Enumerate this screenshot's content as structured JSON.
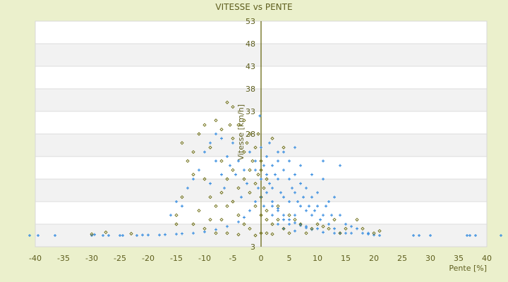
{
  "chart_data": {
    "type": "scatter",
    "title": "VITESSE vs PENTE",
    "xlabel": "Pente [%]",
    "ylabel": "Vitesse [km/h]",
    "xlim": [
      -40,
      40
    ],
    "ylim": [
      3,
      53
    ],
    "xticks": [
      -40,
      -35,
      -30,
      -25,
      -20,
      -15,
      -10,
      -5,
      0,
      5,
      10,
      15,
      20,
      25,
      30,
      35,
      40
    ],
    "yticks": [
      53,
      48,
      43,
      38,
      33,
      28,
      23,
      18,
      13,
      8,
      3
    ],
    "ytick_labels_shown": [
      "53",
      "48",
      "43",
      "38",
      "33",
      "28",
      "3"
    ],
    "grid": true,
    "legend": "none",
    "colors": {
      "background": "#ebf0cc",
      "plot": "#ffffff",
      "band": "#f2f2f2",
      "axis": "#5c5c00",
      "series_blue": "#3a8ee0",
      "series_olive": "#6b6b10",
      "text": "#5e5e1e"
    },
    "series": [
      {
        "marker": "plus",
        "color": "#3a8ee0",
        "points": [
          [
            -41,
            5.5
          ],
          [
            -39.5,
            5.5
          ],
          [
            -36.5,
            5.5
          ],
          [
            -30,
            5.5
          ],
          [
            -29.5,
            5.7
          ],
          [
            -28,
            5.5
          ],
          [
            -27,
            5.5
          ],
          [
            -25,
            5.5
          ],
          [
            -24.5,
            5.5
          ],
          [
            -22,
            5.5
          ],
          [
            -21,
            5.6
          ],
          [
            -20,
            5.6
          ],
          [
            -18,
            5.6
          ],
          [
            -17,
            5.7
          ],
          [
            -15,
            5.8
          ],
          [
            -14,
            5.9
          ],
          [
            -12,
            6
          ],
          [
            -10,
            6.3
          ],
          [
            -8,
            6.8
          ],
          [
            -6,
            7.5
          ],
          [
            -4,
            8.5
          ],
          [
            -3,
            9.5
          ],
          [
            -2,
            11
          ],
          [
            -1,
            13
          ],
          [
            -10,
            24
          ],
          [
            -9,
            26
          ],
          [
            -8,
            28
          ],
          [
            -7,
            27
          ],
          [
            -11,
            20
          ],
          [
            -12,
            18
          ],
          [
            -13,
            16
          ],
          [
            -14,
            12
          ],
          [
            -9,
            17
          ],
          [
            -8,
            22
          ],
          [
            -7,
            19
          ],
          [
            -6,
            23
          ],
          [
            -5,
            26
          ],
          [
            -4,
            22
          ],
          [
            -3,
            20
          ],
          [
            -2,
            24
          ],
          [
            -1,
            22
          ],
          [
            0,
            25
          ],
          [
            0,
            18
          ],
          [
            0,
            14
          ],
          [
            1,
            23
          ],
          [
            1,
            19
          ],
          [
            2,
            21
          ],
          [
            2,
            16
          ],
          [
            2,
            12
          ],
          [
            3,
            22
          ],
          [
            3,
            18
          ],
          [
            3,
            11
          ],
          [
            4,
            20
          ],
          [
            4,
            14
          ],
          [
            4,
            9
          ],
          [
            5,
            18
          ],
          [
            5,
            13
          ],
          [
            5,
            8
          ],
          [
            6,
            19
          ],
          [
            6,
            15
          ],
          [
            6,
            10
          ],
          [
            7,
            17
          ],
          [
            7,
            12
          ],
          [
            7,
            8
          ],
          [
            8,
            16
          ],
          [
            8,
            11
          ],
          [
            8,
            7.5
          ],
          [
            9,
            14
          ],
          [
            9,
            10
          ],
          [
            10,
            15
          ],
          [
            10,
            12
          ],
          [
            10,
            7
          ],
          [
            11,
            18
          ],
          [
            11,
            10
          ],
          [
            12,
            13
          ],
          [
            12,
            8
          ],
          [
            13,
            14
          ],
          [
            13,
            7
          ],
          [
            14,
            10
          ],
          [
            14,
            6
          ],
          [
            15,
            8
          ],
          [
            15,
            6
          ],
          [
            16,
            6
          ],
          [
            17,
            7
          ],
          [
            18,
            6
          ],
          [
            19,
            6
          ],
          [
            20,
            5.6
          ],
          [
            21,
            5.5
          ],
          [
            27,
            5.5
          ],
          [
            28,
            5.5
          ],
          [
            30,
            5.5
          ],
          [
            36.5,
            5.5
          ],
          [
            37,
            5.5
          ],
          [
            38,
            5.5
          ],
          [
            42.5,
            5.5
          ],
          [
            1,
            15
          ],
          [
            2,
            13
          ],
          [
            3,
            11.5
          ],
          [
            4,
            10
          ],
          [
            5,
            9
          ],
          [
            6,
            8.3
          ],
          [
            7,
            7.7
          ],
          [
            8,
            7.2
          ],
          [
            9,
            6.8
          ],
          [
            -15,
            13
          ],
          [
            -16,
            10
          ],
          [
            1.5,
            26
          ],
          [
            4,
            24
          ],
          [
            6,
            25
          ],
          [
            14,
            21
          ],
          [
            11,
            22
          ],
          [
            -0.2,
            32
          ],
          [
            -1,
            20
          ],
          [
            0.5,
            21
          ],
          [
            1.5,
            17
          ],
          [
            2.5,
            19
          ],
          [
            3.5,
            15
          ],
          [
            0.5,
            12
          ],
          [
            -0.5,
            16
          ],
          [
            5.5,
            16
          ],
          [
            6.5,
            13
          ],
          [
            7.5,
            14
          ],
          [
            8.5,
            12
          ],
          [
            9.5,
            11
          ],
          [
            10.5,
            9
          ],
          [
            11.5,
            12
          ],
          [
            12.5,
            10
          ],
          [
            -2.5,
            17
          ],
          [
            -3.5,
            14
          ],
          [
            -4.5,
            19
          ],
          [
            -5.5,
            21
          ],
          [
            -6.5,
            16
          ],
          [
            3,
            24
          ],
          [
            5,
            22
          ],
          [
            7,
            21
          ],
          [
            9,
            19
          ],
          [
            2,
            10
          ],
          [
            3,
            8
          ],
          [
            4,
            7
          ],
          [
            6,
            6.5
          ],
          [
            11,
            6.2
          ],
          [
            13,
            6
          ],
          [
            16,
            7.5
          ],
          [
            19,
            5.8
          ]
        ]
      },
      {
        "marker": "diamond",
        "color": "#6b6b10",
        "points": [
          [
            -30,
            5.8
          ],
          [
            -27.5,
            6.2
          ],
          [
            -23,
            5.9
          ],
          [
            -15,
            8
          ],
          [
            -14,
            26
          ],
          [
            -13,
            22
          ],
          [
            -12,
            19
          ],
          [
            -11,
            28
          ],
          [
            -10,
            30
          ],
          [
            -9,
            25
          ],
          [
            -8,
            31
          ],
          [
            -7,
            22
          ],
          [
            -6,
            35
          ],
          [
            -5,
            34
          ],
          [
            -5,
            27
          ],
          [
            -4,
            30
          ],
          [
            -3,
            31
          ],
          [
            -3,
            24
          ],
          [
            -2,
            28
          ],
          [
            -2,
            20
          ],
          [
            -1,
            25
          ],
          [
            -1,
            17
          ],
          [
            0,
            22
          ],
          [
            0,
            14
          ],
          [
            0,
            10
          ],
          [
            -7,
            15
          ],
          [
            -8,
            12
          ],
          [
            -9,
            9
          ],
          [
            -10,
            7
          ],
          [
            -11,
            11
          ],
          [
            -12,
            8
          ],
          [
            -6,
            18
          ],
          [
            -5,
            13
          ],
          [
            -4,
            10
          ],
          [
            -3,
            8
          ],
          [
            -2,
            7
          ],
          [
            -1,
            12
          ],
          [
            1,
            9
          ],
          [
            1,
            6
          ],
          [
            2,
            8
          ],
          [
            3,
            12
          ],
          [
            4,
            7
          ],
          [
            5,
            6
          ],
          [
            6,
            9
          ],
          [
            8,
            6
          ],
          [
            10,
            8
          ],
          [
            12,
            7
          ],
          [
            14,
            6
          ],
          [
            17,
            9
          ],
          [
            18,
            7
          ],
          [
            20,
            6
          ],
          [
            21,
            6.5
          ],
          [
            -6,
            6
          ],
          [
            -4,
            5.7
          ],
          [
            -8,
            6
          ],
          [
            -1,
            5.5
          ],
          [
            0,
            6
          ],
          [
            2,
            5.8
          ],
          [
            -2,
            15
          ],
          [
            -3,
            18
          ],
          [
            0,
            20
          ],
          [
            1,
            18
          ],
          [
            -14,
            14
          ],
          [
            -15,
            10
          ],
          [
            -7,
            29
          ],
          [
            -12,
            24
          ],
          [
            4,
            25
          ],
          [
            2,
            27
          ],
          [
            -1.5,
            22
          ],
          [
            -2.5,
            26
          ],
          [
            -0.5,
            19
          ],
          [
            0.5,
            16
          ],
          [
            -4,
            16
          ],
          [
            -5,
            20
          ],
          [
            -6,
            12
          ],
          [
            -7,
            9
          ],
          [
            -9,
            14
          ],
          [
            -10,
            18
          ],
          [
            1,
            11
          ],
          [
            3,
            9
          ],
          [
            5,
            10
          ],
          [
            7,
            8
          ],
          [
            9,
            7
          ],
          [
            11,
            7.5
          ],
          [
            13,
            9
          ],
          [
            15,
            7
          ],
          [
            -0.5,
            28
          ],
          [
            -5.5,
            30
          ]
        ]
      }
    ]
  }
}
